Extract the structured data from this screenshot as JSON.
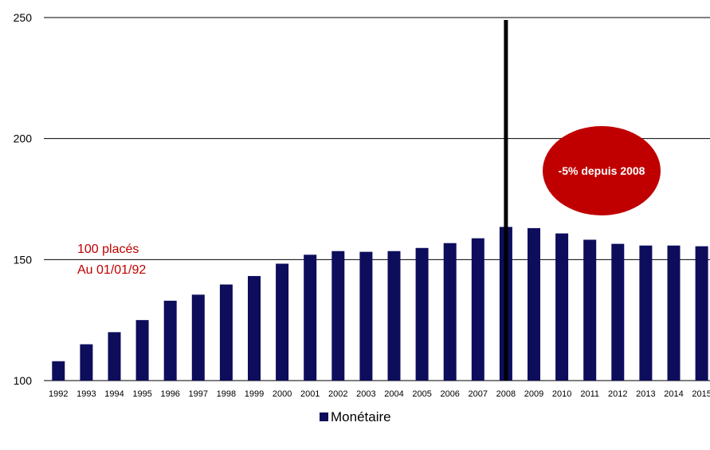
{
  "chart_data": {
    "type": "bar",
    "categories": [
      "1992",
      "1993",
      "1994",
      "1995",
      "1996",
      "1997",
      "1998",
      "1999",
      "2000",
      "2001",
      "2002",
      "2003",
      "2004",
      "2005",
      "2006",
      "2007",
      "2008",
      "2009",
      "2010",
      "2011",
      "2012",
      "2013",
      "2014",
      "2015"
    ],
    "series": [
      {
        "name": "Monétaire",
        "color": "#0d0d5c",
        "values": [
          108,
          115,
          120,
          125,
          133,
          135.5,
          139.7,
          143.2,
          148.3,
          152,
          153.5,
          153.2,
          153.5,
          154.8,
          156.8,
          158.8,
          163.5,
          163,
          160.8,
          158.2,
          156.5,
          155.8,
          155.8,
          155.5
        ]
      }
    ],
    "ylim": [
      100,
      250
    ],
    "yticks": [
      100,
      150,
      200,
      250
    ],
    "grid": true,
    "legend": "bottom-center",
    "annotations": {
      "base_line1": "100 placés",
      "base_line2": "Au 01/01/92",
      "bubble": "-5% depuis 2008",
      "marker_category": "2008"
    },
    "colors": {
      "bar": "#0d0d5c",
      "bubble": "#c00000",
      "annotation_text": "#c00000",
      "marker": "#000000"
    }
  }
}
